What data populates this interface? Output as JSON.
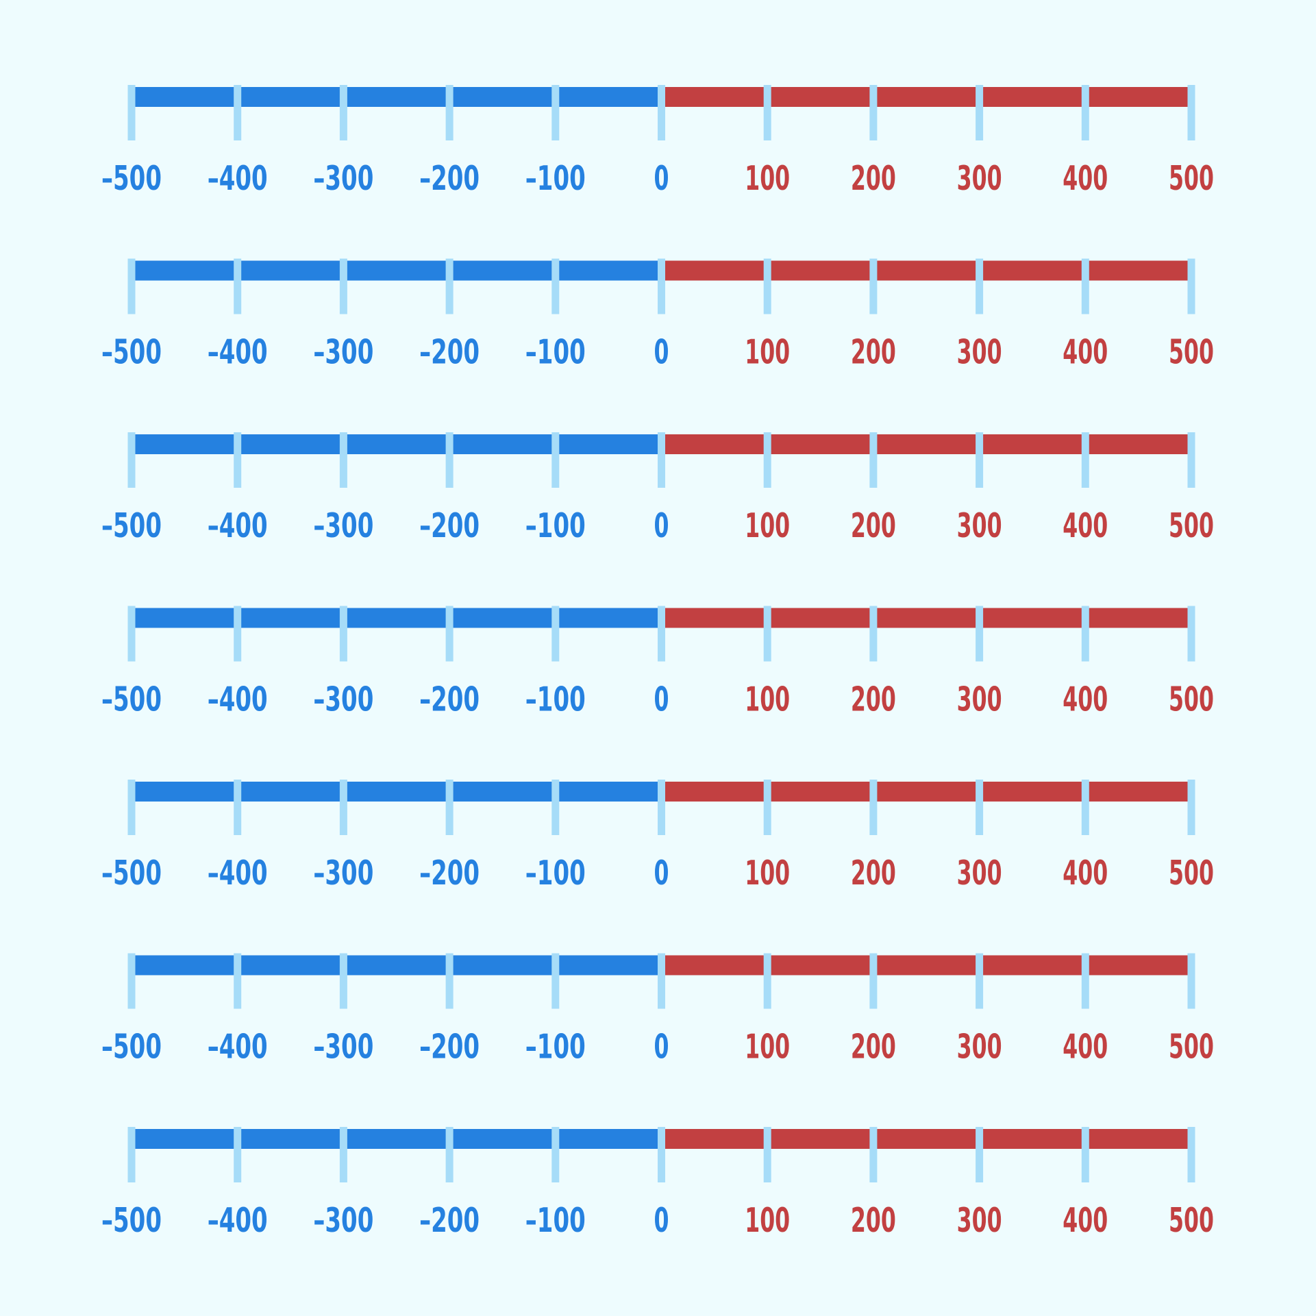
{
  "colors": {
    "background": "#eefcfe",
    "negative": "#2581e0",
    "positive": "#c24041",
    "tick": "#a6dcf8"
  },
  "number_lines": [
    {
      "segments": [
        {
          "from": -500,
          "to": 0,
          "tone": "negative"
        },
        {
          "from": 0,
          "to": 500,
          "tone": "positive"
        }
      ],
      "ticks": [
        {
          "value": -500,
          "label": "–500",
          "tone": "negative"
        },
        {
          "value": -400,
          "label": "–400",
          "tone": "negative"
        },
        {
          "value": -300,
          "label": "–300",
          "tone": "negative"
        },
        {
          "value": -200,
          "label": "–200",
          "tone": "negative"
        },
        {
          "value": -100,
          "label": "–100",
          "tone": "negative"
        },
        {
          "value": 0,
          "label": "0",
          "tone": "negative"
        },
        {
          "value": 100,
          "label": "100",
          "tone": "positive"
        },
        {
          "value": 200,
          "label": "200",
          "tone": "positive"
        },
        {
          "value": 300,
          "label": "300",
          "tone": "positive"
        },
        {
          "value": 400,
          "label": "400",
          "tone": "positive"
        },
        {
          "value": 500,
          "label": "500",
          "tone": "positive"
        }
      ]
    },
    {
      "segments": [
        {
          "from": -500,
          "to": 0,
          "tone": "negative"
        },
        {
          "from": 0,
          "to": 500,
          "tone": "positive"
        }
      ],
      "ticks": [
        {
          "value": -500,
          "label": "–500",
          "tone": "negative"
        },
        {
          "value": -400,
          "label": "–400",
          "tone": "negative"
        },
        {
          "value": -300,
          "label": "–300",
          "tone": "negative"
        },
        {
          "value": -200,
          "label": "–200",
          "tone": "negative"
        },
        {
          "value": -100,
          "label": "–100",
          "tone": "negative"
        },
        {
          "value": 0,
          "label": "0",
          "tone": "negative"
        },
        {
          "value": 100,
          "label": "100",
          "tone": "positive"
        },
        {
          "value": 200,
          "label": "200",
          "tone": "positive"
        },
        {
          "value": 300,
          "label": "300",
          "tone": "positive"
        },
        {
          "value": 400,
          "label": "400",
          "tone": "positive"
        },
        {
          "value": 500,
          "label": "500",
          "tone": "positive"
        }
      ]
    },
    {
      "segments": [
        {
          "from": -500,
          "to": 0,
          "tone": "negative"
        },
        {
          "from": 0,
          "to": 500,
          "tone": "positive"
        }
      ],
      "ticks": [
        {
          "value": -500,
          "label": "–500",
          "tone": "negative"
        },
        {
          "value": -400,
          "label": "–400",
          "tone": "negative"
        },
        {
          "value": -300,
          "label": "–300",
          "tone": "negative"
        },
        {
          "value": -200,
          "label": "–200",
          "tone": "negative"
        },
        {
          "value": -100,
          "label": "–100",
          "tone": "negative"
        },
        {
          "value": 0,
          "label": "0",
          "tone": "negative"
        },
        {
          "value": 100,
          "label": "100",
          "tone": "positive"
        },
        {
          "value": 200,
          "label": "200",
          "tone": "positive"
        },
        {
          "value": 300,
          "label": "300",
          "tone": "positive"
        },
        {
          "value": 400,
          "label": "400",
          "tone": "positive"
        },
        {
          "value": 500,
          "label": "500",
          "tone": "positive"
        }
      ]
    },
    {
      "segments": [
        {
          "from": -500,
          "to": 0,
          "tone": "negative"
        },
        {
          "from": 0,
          "to": 500,
          "tone": "positive"
        }
      ],
      "ticks": [
        {
          "value": -500,
          "label": "–500",
          "tone": "negative"
        },
        {
          "value": -400,
          "label": "–400",
          "tone": "negative"
        },
        {
          "value": -300,
          "label": "–300",
          "tone": "negative"
        },
        {
          "value": -200,
          "label": "–200",
          "tone": "negative"
        },
        {
          "value": -100,
          "label": "–100",
          "tone": "negative"
        },
        {
          "value": 0,
          "label": "0",
          "tone": "negative"
        },
        {
          "value": 100,
          "label": "100",
          "tone": "positive"
        },
        {
          "value": 200,
          "label": "200",
          "tone": "positive"
        },
        {
          "value": 300,
          "label": "300",
          "tone": "positive"
        },
        {
          "value": 400,
          "label": "400",
          "tone": "positive"
        },
        {
          "value": 500,
          "label": "500",
          "tone": "positive"
        }
      ]
    },
    {
      "segments": [
        {
          "from": -500,
          "to": 0,
          "tone": "negative"
        },
        {
          "from": 0,
          "to": 500,
          "tone": "positive"
        }
      ],
      "ticks": [
        {
          "value": -500,
          "label": "–500",
          "tone": "negative"
        },
        {
          "value": -400,
          "label": "–400",
          "tone": "negative"
        },
        {
          "value": -300,
          "label": "–300",
          "tone": "negative"
        },
        {
          "value": -200,
          "label": "–200",
          "tone": "negative"
        },
        {
          "value": -100,
          "label": "–100",
          "tone": "negative"
        },
        {
          "value": 0,
          "label": "0",
          "tone": "negative"
        },
        {
          "value": 100,
          "label": "100",
          "tone": "positive"
        },
        {
          "value": 200,
          "label": "200",
          "tone": "positive"
        },
        {
          "value": 300,
          "label": "300",
          "tone": "positive"
        },
        {
          "value": 400,
          "label": "400",
          "tone": "positive"
        },
        {
          "value": 500,
          "label": "500",
          "tone": "positive"
        }
      ]
    },
    {
      "segments": [
        {
          "from": -500,
          "to": 0,
          "tone": "negative"
        },
        {
          "from": 0,
          "to": 500,
          "tone": "positive"
        }
      ],
      "ticks": [
        {
          "value": -500,
          "label": "–500",
          "tone": "negative"
        },
        {
          "value": -400,
          "label": "–400",
          "tone": "negative"
        },
        {
          "value": -300,
          "label": "–300",
          "tone": "negative"
        },
        {
          "value": -200,
          "label": "–200",
          "tone": "negative"
        },
        {
          "value": -100,
          "label": "–100",
          "tone": "negative"
        },
        {
          "value": 0,
          "label": "0",
          "tone": "negative"
        },
        {
          "value": 100,
          "label": "100",
          "tone": "positive"
        },
        {
          "value": 200,
          "label": "200",
          "tone": "positive"
        },
        {
          "value": 300,
          "label": "300",
          "tone": "positive"
        },
        {
          "value": 400,
          "label": "400",
          "tone": "positive"
        },
        {
          "value": 500,
          "label": "500",
          "tone": "positive"
        }
      ]
    },
    {
      "segments": [
        {
          "from": -500,
          "to": 0,
          "tone": "negative"
        },
        {
          "from": 0,
          "to": 500,
          "tone": "positive"
        }
      ],
      "ticks": [
        {
          "value": -500,
          "label": "–500",
          "tone": "negative"
        },
        {
          "value": -400,
          "label": "–400",
          "tone": "negative"
        },
        {
          "value": -300,
          "label": "–300",
          "tone": "negative"
        },
        {
          "value": -200,
          "label": "–200",
          "tone": "negative"
        },
        {
          "value": -100,
          "label": "–100",
          "tone": "negative"
        },
        {
          "value": 0,
          "label": "0",
          "tone": "negative"
        },
        {
          "value": 100,
          "label": "100",
          "tone": "positive"
        },
        {
          "value": 200,
          "label": "200",
          "tone": "positive"
        },
        {
          "value": 300,
          "label": "300",
          "tone": "positive"
        },
        {
          "value": 400,
          "label": "400",
          "tone": "positive"
        },
        {
          "value": 500,
          "label": "500",
          "tone": "positive"
        }
      ]
    }
  ]
}
